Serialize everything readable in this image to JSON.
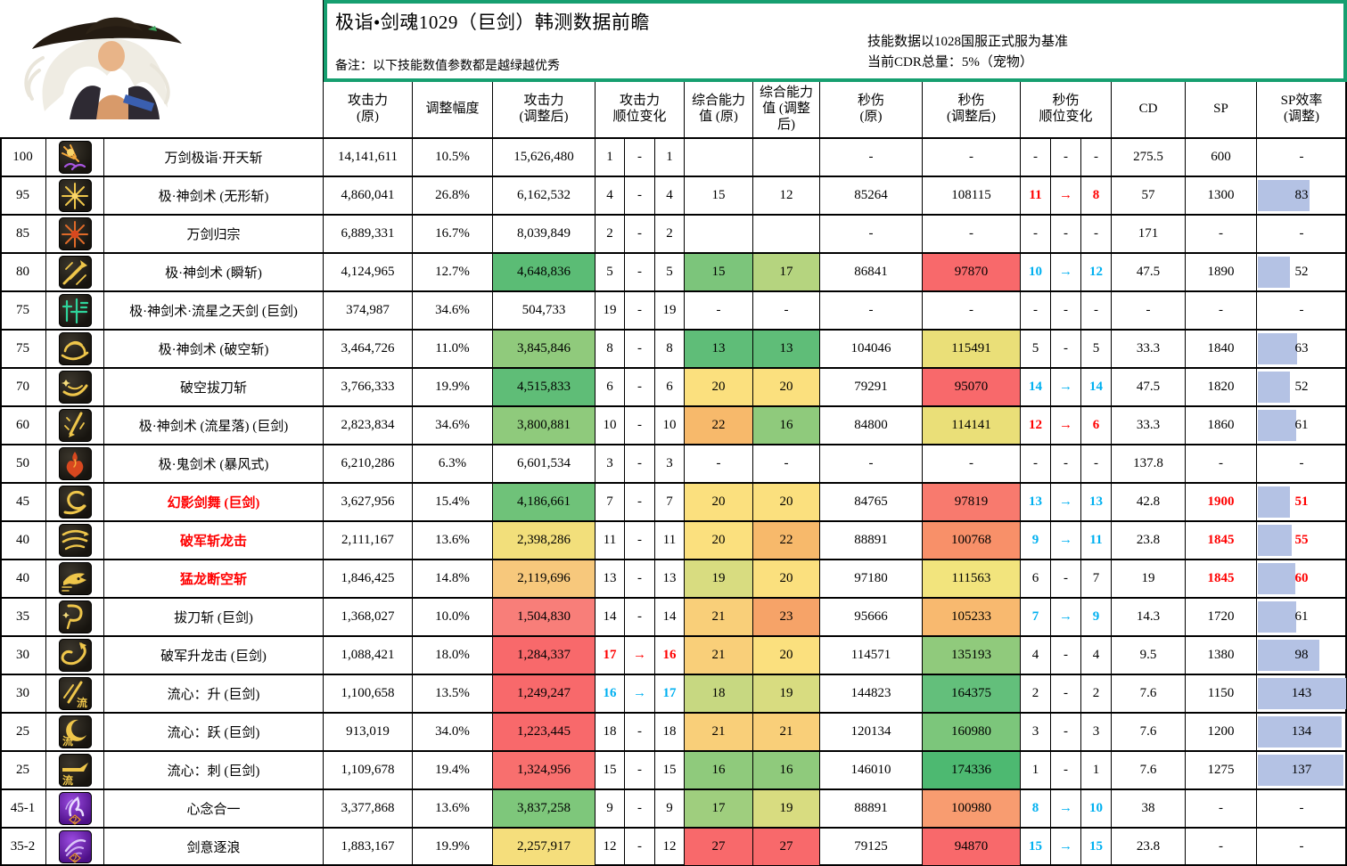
{
  "header": {
    "title": "极诣•剑魂1029（巨剑）韩测数据前瞻",
    "note": "备注：以下技能数值参数都是越绿越优秀",
    "right_notes": "技能数据以1028国服正式服为基准\n当前CDR总量：5%（宠物）"
  },
  "columns": {
    "attack_original": "攻击力\n(原)",
    "adjust_pct": "调整幅度",
    "attack_adjusted": "攻击力\n(调整后)",
    "attack_rank": "攻击力\n顺位变化",
    "comp_original": "综合能力\n值 (原)",
    "comp_adjusted": "综合能力\n值 (调整\n后)",
    "dps_original": "秒伤\n(原)",
    "dps_adjusted": "秒伤\n(调整后)",
    "dps_rank": "秒伤\n顺位变化",
    "cd": "CD",
    "sp": "SP",
    "sp_eff": "SP效率\n(调整)"
  },
  "colors": {
    "frame_green": "#169F70",
    "text_red": "#FF0000",
    "text_cyan": "#00B0F0",
    "databar_blue": "#B4C2E4",
    "scale_green": "#63BE7B",
    "scale_yellow": "#FBE07E",
    "scale_red": "#F8696B"
  },
  "chart_data": {
    "type": "table",
    "title": "极诣•剑魂1029（巨剑）韩测数据前瞻",
    "columns": [
      "等级",
      "图标",
      "技能",
      "攻击力(原)",
      "调整幅度",
      "攻击力(调整后)",
      "攻击力顺位变化",
      "综合能力值(原)",
      "综合能力值(调整后)",
      "秒伤(原)",
      "秒伤(调整后)",
      "秒伤顺位变化",
      "CD",
      "SP",
      "SP效率(调整)"
    ],
    "rows": [
      {
        "level": "100",
        "icon": "burst-explosion-icon",
        "name": "万剑极诣·开天斩",
        "name_red": false,
        "attack_original": "14,141,611",
        "adjust_pct": "10.5%",
        "attack_adjusted": "15,626,480",
        "attack_adjusted_bg": "",
        "attack_rank": [
          "1",
          "-",
          "1"
        ],
        "attack_rank_color": "black",
        "comp_original": "",
        "comp_original_bg": "",
        "comp_adjusted": "",
        "comp_adjusted_bg": "",
        "dps_original": "-",
        "dps_adjusted": "-",
        "dps_adjusted_bg": "",
        "dps_rank": [
          "-",
          "-",
          "-"
        ],
        "dps_rank_color": "black",
        "cd": "275.5",
        "sp": "600",
        "sp_red": false,
        "sp_eff": "-",
        "sp_eff_red": false,
        "sp_eff_bar": 0
      },
      {
        "level": "95",
        "icon": "gold-starburst-icon",
        "name": "极·神剑术 (无形斩)",
        "name_red": false,
        "attack_original": "4,860,041",
        "adjust_pct": "26.8%",
        "attack_adjusted": "6,162,532",
        "attack_adjusted_bg": "",
        "attack_rank": [
          "4",
          "-",
          "4"
        ],
        "attack_rank_color": "black",
        "comp_original": "15",
        "comp_original_bg": "",
        "comp_adjusted": "12",
        "comp_adjusted_bg": "",
        "dps_original": "85264",
        "dps_adjusted": "108115",
        "dps_adjusted_bg": "",
        "dps_rank": [
          "11",
          "→",
          "8"
        ],
        "dps_rank_color": "red",
        "cd": "57",
        "sp": "1300",
        "sp_red": false,
        "sp_eff": "83",
        "sp_eff_red": false,
        "sp_eff_bar": 58
      },
      {
        "level": "85",
        "icon": "orange-starburst-icon",
        "name": "万剑归宗",
        "name_red": false,
        "attack_original": "6,889,331",
        "adjust_pct": "16.7%",
        "attack_adjusted": "8,039,849",
        "attack_adjusted_bg": "",
        "attack_rank": [
          "2",
          "-",
          "2"
        ],
        "attack_rank_color": "black",
        "comp_original": "",
        "comp_original_bg": "",
        "comp_adjusted": "",
        "comp_adjusted_bg": "",
        "dps_original": "-",
        "dps_adjusted": "-",
        "dps_adjusted_bg": "",
        "dps_rank": [
          "-",
          "-",
          "-"
        ],
        "dps_rank_color": "black",
        "cd": "171",
        "sp": "-",
        "sp_red": false,
        "sp_eff": "-",
        "sp_eff_red": false,
        "sp_eff_bar": 0
      },
      {
        "level": "80",
        "icon": "sword-rays-icon",
        "name": "极·神剑术 (瞬斩)",
        "name_red": false,
        "attack_original": "4,124,965",
        "adjust_pct": "12.7%",
        "attack_adjusted": "4,648,836",
        "attack_adjusted_bg": "#5BBC75",
        "attack_rank": [
          "5",
          "-",
          "5"
        ],
        "attack_rank_color": "black",
        "comp_original": "15",
        "comp_original_bg": "#7CC57B",
        "comp_adjusted": "17",
        "comp_adjusted_bg": "#B5D47F",
        "dps_original": "86841",
        "dps_adjusted": "97870",
        "dps_adjusted_bg": "#F8696B",
        "dps_rank": [
          "10",
          "→",
          "12"
        ],
        "dps_rank_color": "cyan",
        "cd": "47.5",
        "sp": "1890",
        "sp_red": false,
        "sp_eff": "52",
        "sp_eff_red": false,
        "sp_eff_bar": 36
      },
      {
        "level": "75",
        "icon": "teal-glyph-icon",
        "name": "极·神剑术·流星之天剑 (巨剑)",
        "name_red": false,
        "attack_original": "374,987",
        "adjust_pct": "34.6%",
        "attack_adjusted": "504,733",
        "attack_adjusted_bg": "",
        "attack_rank": [
          "19",
          "-",
          "19"
        ],
        "attack_rank_color": "black",
        "comp_original": "-",
        "comp_original_bg": "",
        "comp_adjusted": "-",
        "comp_adjusted_bg": "",
        "dps_original": "-",
        "dps_adjusted": "-",
        "dps_adjusted_bg": "",
        "dps_rank": [
          "-",
          "-",
          "-"
        ],
        "dps_rank_color": "black",
        "cd": "-",
        "sp": "-",
        "sp_red": false,
        "sp_eff": "-",
        "sp_eff_red": false,
        "sp_eff_bar": 0
      },
      {
        "level": "75",
        "icon": "ring-slash-icon",
        "name": "极·神剑术 (破空斩)",
        "name_red": false,
        "attack_original": "3,464,726",
        "adjust_pct": "11.0%",
        "attack_adjusted": "3,845,846",
        "attack_adjusted_bg": "#90CA7C",
        "attack_rank": [
          "8",
          "-",
          "8"
        ],
        "attack_rank_color": "black",
        "comp_original": "13",
        "comp_original_bg": "#5FBD78",
        "comp_adjusted": "13",
        "comp_adjusted_bg": "#5FBD78",
        "dps_original": "104046",
        "dps_adjusted": "115491",
        "dps_adjusted_bg": "#EADF78",
        "dps_rank": [
          "5",
          "-",
          "5"
        ],
        "dps_rank_color": "black",
        "cd": "33.3",
        "sp": "1840",
        "sp_red": false,
        "sp_eff": "63",
        "sp_eff_red": false,
        "sp_eff_bar": 44
      },
      {
        "level": "70",
        "icon": "swoosh-slash-icon",
        "name": "破空拔刀斩",
        "name_red": false,
        "attack_original": "3,766,333",
        "adjust_pct": "19.9%",
        "attack_adjusted": "4,515,833",
        "attack_adjusted_bg": "#5FBD77",
        "attack_rank": [
          "6",
          "-",
          "6"
        ],
        "attack_rank_color": "black",
        "comp_original": "20",
        "comp_original_bg": "#FBE07E",
        "comp_adjusted": "20",
        "comp_adjusted_bg": "#FBE07E",
        "dps_original": "79291",
        "dps_adjusted": "95070",
        "dps_adjusted_bg": "#F8696B",
        "dps_rank": [
          "14",
          "→",
          "14"
        ],
        "dps_rank_color": "cyan",
        "cd": "47.5",
        "sp": "1820",
        "sp_red": false,
        "sp_eff": "52",
        "sp_eff_red": false,
        "sp_eff_bar": 36
      },
      {
        "level": "60",
        "icon": "falling-sword-icon",
        "name": "极·神剑术 (流星落) (巨剑)",
        "name_red": false,
        "attack_original": "2,823,834",
        "adjust_pct": "34.6%",
        "attack_adjusted": "3,800,881",
        "attack_adjusted_bg": "#8FCA7C",
        "attack_rank": [
          "10",
          "-",
          "10"
        ],
        "attack_rank_color": "black",
        "comp_original": "22",
        "comp_original_bg": "#F7B96B",
        "comp_adjusted": "16",
        "comp_adjusted_bg": "#8FCA7C",
        "dps_original": "84800",
        "dps_adjusted": "114141",
        "dps_adjusted_bg": "#EADF78",
        "dps_rank": [
          "12",
          "→",
          "6"
        ],
        "dps_rank_color": "red",
        "cd": "33.3",
        "sp": "1860",
        "sp_red": false,
        "sp_eff": "61",
        "sp_eff_red": false,
        "sp_eff_bar": 43
      },
      {
        "level": "50",
        "icon": "flame-icon",
        "name": "极·鬼剑术 (暴风式)",
        "name_red": false,
        "attack_original": "6,210,286",
        "adjust_pct": "6.3%",
        "attack_adjusted": "6,601,534",
        "attack_adjusted_bg": "",
        "attack_rank": [
          "3",
          "-",
          "3"
        ],
        "attack_rank_color": "black",
        "comp_original": "-",
        "comp_original_bg": "",
        "comp_adjusted": "-",
        "comp_adjusted_bg": "",
        "dps_original": "-",
        "dps_adjusted": "-",
        "dps_adjusted_bg": "",
        "dps_rank": [
          "-",
          "-",
          "-"
        ],
        "dps_rank_color": "black",
        "cd": "137.8",
        "sp": "-",
        "sp_red": false,
        "sp_eff": "-",
        "sp_eff_red": false,
        "sp_eff_bar": 0
      },
      {
        "level": "45",
        "icon": "loop-slash-icon",
        "name": "幻影剑舞 (巨剑)",
        "name_red": true,
        "attack_original": "3,627,956",
        "adjust_pct": "15.4%",
        "attack_adjusted": "4,186,661",
        "attack_adjusted_bg": "#6FC279",
        "attack_rank": [
          "7",
          "-",
          "7"
        ],
        "attack_rank_color": "black",
        "comp_original": "20",
        "comp_original_bg": "#FBE07E",
        "comp_adjusted": "20",
        "comp_adjusted_bg": "#FBE07E",
        "dps_original": "84765",
        "dps_adjusted": "97819",
        "dps_adjusted_bg": "#F87A6E",
        "dps_rank": [
          "13",
          "→",
          "13"
        ],
        "dps_rank_color": "cyan",
        "cd": "42.8",
        "sp": "1900",
        "sp_red": true,
        "sp_eff": "51",
        "sp_eff_red": true,
        "sp_eff_bar": 36
      },
      {
        "level": "40",
        "icon": "claw-strike-icon",
        "name": "破军斩龙击",
        "name_red": true,
        "attack_original": "2,111,167",
        "adjust_pct": "13.6%",
        "attack_adjusted": "2,398,286",
        "attack_adjusted_bg": "#F2DF7B",
        "attack_rank": [
          "11",
          "-",
          "11"
        ],
        "attack_rank_color": "black",
        "comp_original": "20",
        "comp_original_bg": "#FBE07E",
        "comp_adjusted": "22",
        "comp_adjusted_bg": "#F7B96B",
        "dps_original": "88891",
        "dps_adjusted": "100768",
        "dps_adjusted_bg": "#F89069",
        "dps_rank": [
          "9",
          "→",
          "11"
        ],
        "dps_rank_color": "cyan",
        "cd": "23.8",
        "sp": "1845",
        "sp_red": true,
        "sp_eff": "55",
        "sp_eff_red": true,
        "sp_eff_bar": 38
      },
      {
        "level": "40",
        "icon": "dragon-head-icon",
        "name": "猛龙断空斩",
        "name_red": true,
        "attack_original": "1,846,425",
        "adjust_pct": "14.8%",
        "attack_adjusted": "2,119,696",
        "attack_adjusted_bg": "#F7C87C",
        "attack_rank": [
          "13",
          "-",
          "13"
        ],
        "attack_rank_color": "black",
        "comp_original": "19",
        "comp_original_bg": "#D8DC80",
        "comp_adjusted": "20",
        "comp_adjusted_bg": "#FBE07E",
        "dps_original": "97180",
        "dps_adjusted": "111563",
        "dps_adjusted_bg": "#F2E47D",
        "dps_rank": [
          "6",
          "-",
          "7"
        ],
        "dps_rank_color": "black",
        "cd": "19",
        "sp": "1845",
        "sp_red": true,
        "sp_eff": "60",
        "sp_eff_red": true,
        "sp_eff_bar": 42
      },
      {
        "level": "35",
        "icon": "curve-slash-icon",
        "name": "拔刀斩 (巨剑)",
        "name_red": false,
        "attack_original": "1,368,027",
        "adjust_pct": "10.0%",
        "attack_adjusted": "1,504,830",
        "attack_adjusted_bg": "#F87E79",
        "attack_rank": [
          "14",
          "-",
          "14"
        ],
        "attack_rank_color": "black",
        "comp_original": "21",
        "comp_original_bg": "#F9CF79",
        "comp_adjusted": "23",
        "comp_adjusted_bg": "#F6A368",
        "dps_original": "95666",
        "dps_adjusted": "105233",
        "dps_adjusted_bg": "#F8B96F",
        "dps_rank": [
          "7",
          "→",
          "9"
        ],
        "dps_rank_color": "cyan",
        "cd": "14.3",
        "sp": "1720",
        "sp_red": false,
        "sp_eff": "61",
        "sp_eff_red": false,
        "sp_eff_bar": 43
      },
      {
        "level": "30",
        "icon": "rising-dragon-icon",
        "name": "破军升龙击 (巨剑)",
        "name_red": false,
        "attack_original": "1,088,421",
        "adjust_pct": "18.0%",
        "attack_adjusted": "1,284,337",
        "attack_adjusted_bg": "#F8696B",
        "attack_rank": [
          "17",
          "→",
          "16"
        ],
        "attack_rank_color": "red",
        "comp_original": "21",
        "comp_original_bg": "#F9CF79",
        "comp_adjusted": "20",
        "comp_adjusted_bg": "#FBE07E",
        "dps_original": "114571",
        "dps_adjusted": "135193",
        "dps_adjusted_bg": "#90CA7C",
        "dps_rank": [
          "4",
          "-",
          "4"
        ],
        "dps_rank_color": "black",
        "cd": "9.5",
        "sp": "1380",
        "sp_red": false,
        "sp_eff": "98",
        "sp_eff_red": false,
        "sp_eff_bar": 69
      },
      {
        "level": "30",
        "icon": "rising-slash-liu-icon",
        "name": "流心：升 (巨剑)",
        "name_red": false,
        "attack_original": "1,100,658",
        "adjust_pct": "13.5%",
        "attack_adjusted": "1,249,247",
        "attack_adjusted_bg": "#F8696B",
        "attack_rank": [
          "16",
          "→",
          "17"
        ],
        "attack_rank_color": "cyan",
        "comp_original": "18",
        "comp_original_bg": "#C7D881",
        "comp_adjusted": "19",
        "comp_adjusted_bg": "#D8DC80",
        "dps_original": "144823",
        "dps_adjusted": "164375",
        "dps_adjusted_bg": "#63BF7B",
        "dps_rank": [
          "2",
          "-",
          "2"
        ],
        "dps_rank_color": "black",
        "cd": "7.6",
        "sp": "1150",
        "sp_red": false,
        "sp_eff": "143",
        "sp_eff_red": false,
        "sp_eff_bar": 100
      },
      {
        "level": "25",
        "icon": "moon-slash-liu-icon",
        "name": "流心：跃 (巨剑)",
        "name_red": false,
        "attack_original": "913,019",
        "adjust_pct": "34.0%",
        "attack_adjusted": "1,223,445",
        "attack_adjusted_bg": "#F8696B",
        "attack_rank": [
          "18",
          "-",
          "18"
        ],
        "attack_rank_color": "black",
        "comp_original": "21",
        "comp_original_bg": "#F9CF79",
        "comp_adjusted": "21",
        "comp_adjusted_bg": "#F9CF79",
        "dps_original": "120134",
        "dps_adjusted": "160980",
        "dps_adjusted_bg": "#7CC67B",
        "dps_rank": [
          "3",
          "-",
          "3"
        ],
        "dps_rank_color": "black",
        "cd": "7.6",
        "sp": "1200",
        "sp_red": false,
        "sp_eff": "134",
        "sp_eff_red": false,
        "sp_eff_bar": 94
      },
      {
        "level": "25",
        "icon": "stab-liu-icon",
        "name": "流心：刺 (巨剑)",
        "name_red": false,
        "attack_original": "1,109,678",
        "adjust_pct": "19.4%",
        "attack_adjusted": "1,324,956",
        "attack_adjusted_bg": "#F86F6E",
        "attack_rank": [
          "15",
          "-",
          "15"
        ],
        "attack_rank_color": "black",
        "comp_original": "16",
        "comp_original_bg": "#8FCA7C",
        "comp_adjusted": "16",
        "comp_adjusted_bg": "#8FCA7C",
        "dps_original": "146010",
        "dps_adjusted": "174336",
        "dps_adjusted_bg": "#4DB971",
        "dps_rank": [
          "1",
          "-",
          "1"
        ],
        "dps_rank_color": "black",
        "cd": "7.6",
        "sp": "1275",
        "sp_red": false,
        "sp_eff": "137",
        "sp_eff_red": false,
        "sp_eff_bar": 96
      },
      {
        "level": "45-1",
        "icon": "purple-spirit-icon",
        "name": "心念合一",
        "name_red": false,
        "attack_original": "3,377,868",
        "adjust_pct": "13.6%",
        "attack_adjusted": "3,837,258",
        "attack_adjusted_bg": "#7EC77B",
        "attack_rank": [
          "9",
          "-",
          "9"
        ],
        "attack_rank_color": "black",
        "comp_original": "17",
        "comp_original_bg": "#9FCE7E",
        "comp_adjusted": "19",
        "comp_adjusted_bg": "#D8DC80",
        "dps_original": "88891",
        "dps_adjusted": "100980",
        "dps_adjusted_bg": "#F89C70",
        "dps_rank": [
          "8",
          "→",
          "10"
        ],
        "dps_rank_color": "cyan",
        "cd": "38",
        "sp": "-",
        "sp_red": false,
        "sp_eff": "-",
        "sp_eff_red": false,
        "sp_eff_bar": 0
      },
      {
        "level": "35-2",
        "icon": "purple-wave-icon",
        "name": "剑意逐浪",
        "name_red": false,
        "attack_original": "1,883,167",
        "adjust_pct": "19.9%",
        "attack_adjusted": "2,257,917",
        "attack_adjusted_bg": "#F5DE7C",
        "attack_rank": [
          "12",
          "-",
          "12"
        ],
        "attack_rank_color": "black",
        "comp_original": "27",
        "comp_original_bg": "#F8696B",
        "comp_adjusted": "27",
        "comp_adjusted_bg": "#F8696B",
        "dps_original": "79125",
        "dps_adjusted": "94870",
        "dps_adjusted_bg": "#F8696B",
        "dps_rank": [
          "15",
          "→",
          "15"
        ],
        "dps_rank_color": "cyan",
        "cd": "23.8",
        "sp": "-",
        "sp_red": false,
        "sp_eff": "-",
        "sp_eff_red": false,
        "sp_eff_bar": 0
      }
    ]
  }
}
